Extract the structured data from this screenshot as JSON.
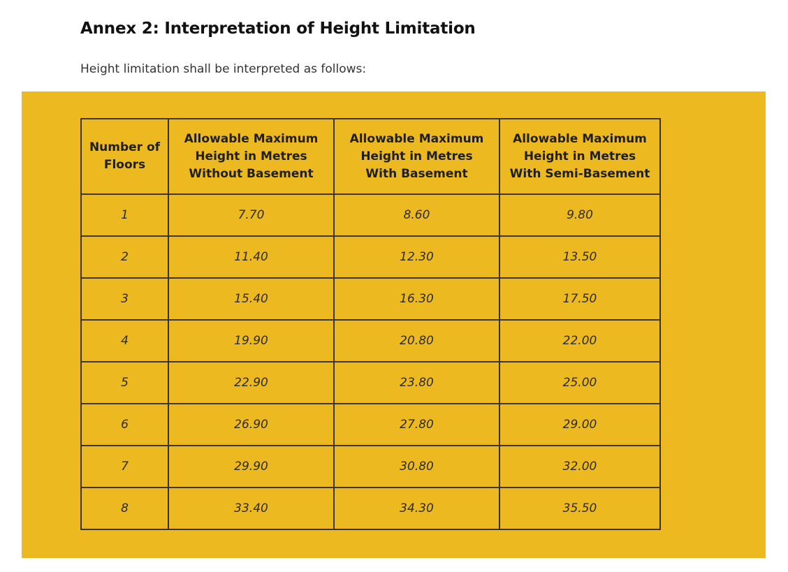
{
  "document": {
    "title": "Annex 2: Interpretation of Height Limitation",
    "intro": "Height limitation shall be interpreted as follows:"
  },
  "table": {
    "headers": [
      [
        "Number of",
        "Floors"
      ],
      [
        "Allowable Maximum",
        "Height in Metres",
        "Without Basement"
      ],
      [
        "Allowable Maximum",
        "Height in Metres",
        "With Basement"
      ],
      [
        "Allowable Maximum",
        "Height in Metres",
        "With Semi-Basement"
      ]
    ],
    "rows": [
      [
        "1",
        "7.70",
        "8.60",
        "9.80"
      ],
      [
        "2",
        "11.40",
        "12.30",
        "13.50"
      ],
      [
        "3",
        "15.40",
        "16.30",
        "17.50"
      ],
      [
        "4",
        "19.90",
        "20.80",
        "22.00"
      ],
      [
        "5",
        "22.90",
        "23.80",
        "25.00"
      ],
      [
        "6",
        "26.90",
        "27.80",
        "29.00"
      ],
      [
        "7",
        "29.90",
        "30.80",
        "32.00"
      ],
      [
        "8",
        "33.40",
        "34.30",
        "35.50"
      ]
    ]
  },
  "colors": {
    "panel_background": "#ecb920",
    "table_border": "#3a3326"
  }
}
